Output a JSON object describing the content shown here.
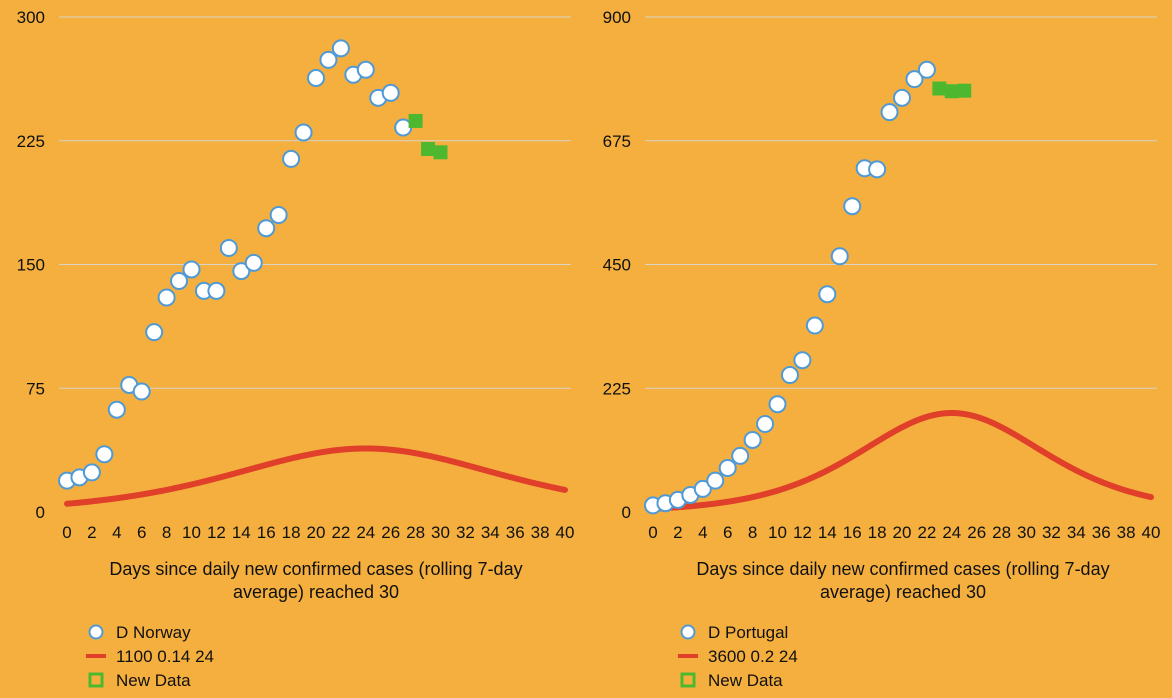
{
  "chart_data": [
    {
      "type": "scatter",
      "title": "",
      "xlabel": "Days since daily new confirmed cases (rolling 7-day average) reached 30",
      "xlabel_lines": [
        "Days since daily new confirmed cases (rolling 7-day",
        "average) reached 30"
      ],
      "ylabel": "",
      "xlim": [
        0,
        40
      ],
      "ylim": [
        0,
        300
      ],
      "x_ticks": [
        0,
        2,
        4,
        6,
        8,
        10,
        12,
        14,
        16,
        18,
        20,
        22,
        24,
        26,
        28,
        30,
        32,
        34,
        36,
        38,
        40
      ],
      "y_ticks": [
        0,
        75,
        150,
        225,
        300
      ],
      "grid": "horizontal",
      "legend_position": "bottom-left",
      "colors": {
        "background": "#F4AF3E",
        "grid": "#D9D4C8",
        "observed_fill": "#FFFFFF",
        "observed_edge": "#4F9AD6",
        "model": "#E0402A",
        "new_data": "#4DB82F"
      },
      "series": [
        {
          "name": "D Norway",
          "kind": "scatter",
          "x": [
            0,
            1,
            2,
            3,
            4,
            5,
            6,
            7,
            8,
            9,
            10,
            11,
            12,
            13,
            14,
            15,
            16,
            17,
            18,
            19,
            20,
            21,
            22,
            23,
            24,
            25,
            26,
            27
          ],
          "y": [
            19,
            21,
            24,
            35,
            62,
            77,
            73,
            109,
            130,
            140,
            147,
            134,
            134,
            160,
            146,
            151,
            172,
            180,
            214,
            230,
            263,
            274,
            281,
            265,
            268,
            251,
            254,
            233
          ]
        },
        {
          "name": "1100 0.14 24",
          "kind": "line",
          "model": {
            "a": 1100,
            "b": 0.14,
            "c": 24
          }
        },
        {
          "name": "New Data",
          "kind": "scatter",
          "x": [
            28,
            29,
            30
          ],
          "y": [
            237,
            220,
            218
          ]
        }
      ]
    },
    {
      "type": "scatter",
      "title": "",
      "xlabel": "Days since daily new confirmed cases (rolling 7-day average) reached 30",
      "xlabel_lines": [
        "Days since daily new confirmed cases (rolling 7-day",
        "average) reached 30"
      ],
      "ylabel": "",
      "xlim": [
        0,
        40
      ],
      "ylim": [
        0,
        900
      ],
      "x_ticks": [
        0,
        2,
        4,
        6,
        8,
        10,
        12,
        14,
        16,
        18,
        20,
        22,
        24,
        26,
        28,
        30,
        32,
        34,
        36,
        38,
        40
      ],
      "y_ticks": [
        0,
        225,
        450,
        675,
        900
      ],
      "grid": "horizontal",
      "legend_position": "bottom-left",
      "colors": {
        "background": "#F4AF3E",
        "grid": "#D9D4C8",
        "observed_fill": "#FFFFFF",
        "observed_edge": "#4F9AD6",
        "model": "#E0402A",
        "new_data": "#4DB82F"
      },
      "series": [
        {
          "name": "D Portugal",
          "kind": "scatter",
          "x": [
            0,
            1,
            2,
            3,
            4,
            5,
            6,
            7,
            8,
            9,
            10,
            11,
            12,
            13,
            14,
            15,
            16,
            17,
            18,
            19,
            20,
            21,
            22
          ],
          "y": [
            12,
            16,
            22,
            31,
            42,
            57,
            80,
            102,
            131,
            160,
            196,
            249,
            276,
            339,
            396,
            465,
            556,
            625,
            623,
            727,
            753,
            787,
            804
          ]
        },
        {
          "name": "3600 0.2 24",
          "kind": "line",
          "model": {
            "a": 3600,
            "b": 0.2,
            "c": 24
          }
        },
        {
          "name": "New Data",
          "kind": "scatter",
          "x": [
            23,
            24,
            25
          ],
          "y": [
            770,
            765,
            766
          ]
        }
      ]
    }
  ]
}
